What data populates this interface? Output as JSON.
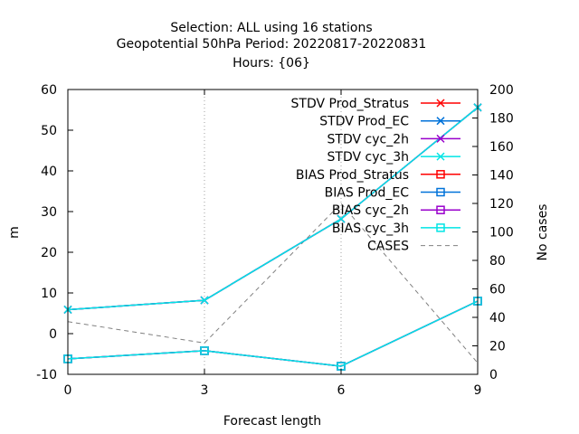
{
  "chart_data": {
    "type": "line",
    "title_lines": [
      "Selection: ALL using    16 stations",
      "Geopotential 50hPa   Period: 20220817-20220831",
      "Hours: {06}"
    ],
    "xlabel": "Forecast length",
    "ylabel": "m",
    "y2label": "No cases",
    "x": [
      0,
      3,
      6,
      9
    ],
    "xlim": [
      0,
      9
    ],
    "xticks": [
      0,
      3,
      6,
      9
    ],
    "ylim": [
      -10,
      60
    ],
    "yticks": [
      -10,
      0,
      10,
      20,
      30,
      40,
      50,
      60
    ],
    "y2lim": [
      0,
      200
    ],
    "y2ticks": [
      0,
      20,
      40,
      60,
      80,
      100,
      120,
      140,
      160,
      180,
      200
    ],
    "grid": true,
    "legend_position": "top-right",
    "series": [
      {
        "name": "STDV Prod_Stratus",
        "axis": "y",
        "color": "#ff0000",
        "marker": "x",
        "dash": false,
        "values": [
          5.9,
          8.2,
          28.2,
          55.6
        ]
      },
      {
        "name": "STDV Prod_EC",
        "axis": "y",
        "color": "#0072d9",
        "marker": "x",
        "dash": false,
        "values": [
          5.9,
          8.2,
          28.2,
          55.6
        ]
      },
      {
        "name": "STDV cyc_2h",
        "axis": "y",
        "color": "#9900cc",
        "marker": "x",
        "dash": false,
        "values": [
          5.9,
          8.2,
          28.2,
          55.6
        ]
      },
      {
        "name": "STDV cyc_3h",
        "axis": "y",
        "color": "#00e5e5",
        "marker": "x",
        "dash": false,
        "values": [
          5.9,
          8.2,
          28.2,
          55.6
        ]
      },
      {
        "name": "BIAS Prod_Stratus",
        "axis": "y",
        "color": "#ff0000",
        "marker": "square",
        "dash": false,
        "values": [
          -6.2,
          -4.2,
          -8.0,
          8.0
        ]
      },
      {
        "name": "BIAS Prod_EC",
        "axis": "y",
        "color": "#0072d9",
        "marker": "square",
        "dash": false,
        "values": [
          -6.2,
          -4.2,
          -8.0,
          8.0
        ]
      },
      {
        "name": "BIAS cyc_2h",
        "axis": "y",
        "color": "#9900cc",
        "marker": "square",
        "dash": false,
        "values": [
          -6.2,
          -4.2,
          -8.0,
          8.0
        ]
      },
      {
        "name": "BIAS cyc_3h",
        "axis": "y",
        "color": "#00e5e5",
        "marker": "square",
        "dash": false,
        "values": [
          -6.2,
          -4.2,
          -8.0,
          8.0
        ]
      },
      {
        "name": "CASES",
        "axis": "y2",
        "color": "#808080",
        "marker": "none",
        "dash": true,
        "values": [
          37,
          22,
          120,
          8
        ]
      }
    ]
  }
}
